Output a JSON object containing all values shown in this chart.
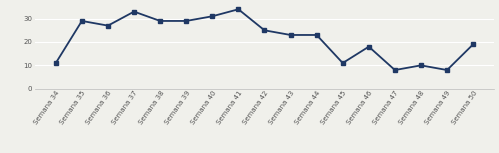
{
  "x_labels": [
    "Semana 34",
    "Semana 35",
    "Semana 36",
    "Semana 37",
    "Semana 38",
    "Semana 39",
    "Semana 40",
    "Semana 41",
    "Semana 42",
    "Semana 43",
    "Semana 44",
    "Semana 45",
    "Semana 46",
    "Semana 47",
    "Semana 48",
    "Semana 49",
    "Semana 50"
  ],
  "values": [
    11,
    29,
    27,
    33,
    29,
    29,
    31,
    34,
    25,
    23,
    23,
    11,
    18,
    8,
    10,
    8,
    19
  ],
  "line_color": "#1f3864",
  "marker": "s",
  "marker_size": 3,
  "line_width": 1.3,
  "ylim": [
    0,
    36
  ],
  "yticks": [
    0,
    10,
    20,
    30
  ],
  "background_color": "#f0f0eb",
  "grid_color": "#ffffff",
  "tick_fontsize": 5.0,
  "xlabel_rotation": 55
}
